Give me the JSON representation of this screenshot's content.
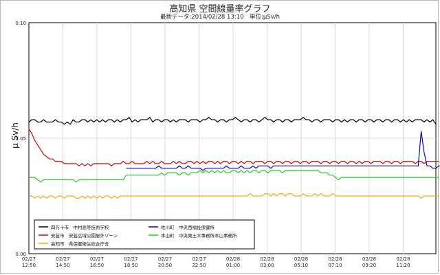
{
  "chart_data": {
    "type": "line",
    "title": "高知県 空間線量率グラフ",
    "subtitle": "最新データ:2014/02/28 13:10　単位:μSv/h",
    "ylabel": "μ Sv/h",
    "ylim": [
      0,
      0.1
    ],
    "yticks": [
      "0.00",
      "0.05",
      "0.10"
    ],
    "grid": true,
    "legend_position": "bottom-left",
    "xticks": [
      {
        "date": "02/27",
        "time": "12:50"
      },
      {
        "date": "02/27",
        "time": "14:50"
      },
      {
        "date": "02/27",
        "time": "16:50"
      },
      {
        "date": "02/27",
        "time": "18:50"
      },
      {
        "date": "02/27",
        "time": "20:50"
      },
      {
        "date": "02/27",
        "time": "22:50"
      },
      {
        "date": "02/28",
        "time": "01:00"
      },
      {
        "date": "02/28",
        "time": "03:00"
      },
      {
        "date": "02/28",
        "time": "05:10"
      },
      {
        "date": "02/28",
        "time": "07:10"
      },
      {
        "date": "02/28",
        "time": "09:20"
      },
      {
        "date": "02/28",
        "time": "11:20"
      }
    ],
    "series": [
      {
        "name": "四万十市　中村高等技術学校",
        "color": "#000000",
        "start": 0,
        "values": [
          0.057,
          0.058,
          0.058,
          0.057,
          0.057,
          0.058,
          0.057,
          0.057,
          0.057,
          0.058,
          0.057,
          0.057,
          0.056,
          0.057,
          0.056,
          0.058,
          0.057,
          0.057,
          0.058,
          0.058,
          0.057,
          0.058,
          0.057,
          0.058,
          0.057,
          0.058,
          0.057,
          0.058,
          0.058,
          0.057,
          0.058,
          0.057,
          0.058,
          0.058,
          0.059,
          0.057,
          0.058,
          0.057,
          0.058,
          0.058,
          0.058,
          0.059,
          0.057,
          0.058,
          0.058,
          0.057,
          0.058,
          0.058,
          0.057,
          0.058,
          0.057,
          0.058,
          0.058,
          0.058,
          0.057,
          0.058,
          0.058,
          0.058,
          0.057,
          0.058,
          0.058,
          0.059,
          0.058,
          0.058,
          0.057,
          0.058,
          0.058,
          0.057,
          0.058,
          0.058,
          0.059,
          0.058,
          0.057,
          0.058,
          0.058,
          0.057,
          0.058,
          0.058,
          0.057,
          0.058,
          0.059,
          0.058,
          0.058,
          0.057,
          0.058,
          0.058,
          0.057,
          0.058,
          0.058,
          0.057,
          0.058,
          0.058,
          0.058,
          0.059,
          0.058,
          0.058,
          0.057,
          0.058,
          0.058,
          0.057,
          0.058,
          0.058,
          0.058,
          0.057,
          0.058,
          0.058,
          0.057,
          0.058,
          0.057,
          0.058,
          0.058,
          0.057,
          0.058,
          0.058,
          0.057,
          0.058,
          0.058,
          0.057,
          0.058,
          0.058,
          0.057,
          0.058,
          0.058,
          0.057,
          0.058,
          0.058,
          0.057,
          0.058,
          0.057,
          0.058,
          0.057,
          0.058,
          0.058,
          0.058,
          0.057,
          0.058,
          0.057,
          0.058,
          0.056
        ]
      },
      {
        "name": "安芸市　安芸広域公園屋外ゾーン",
        "color": "#dd0000",
        "start": 0,
        "values": [
          0.054,
          0.052,
          0.049,
          0.047,
          0.045,
          0.043,
          0.042,
          0.041,
          0.041,
          0.04,
          0.04,
          0.04,
          0.039,
          0.039,
          0.039,
          0.039,
          0.039,
          0.038,
          0.039,
          0.038,
          0.039,
          0.038,
          0.039,
          0.039,
          0.039,
          0.039,
          0.039,
          0.039,
          0.038,
          0.039,
          0.039,
          0.039,
          0.04,
          0.039,
          0.039,
          0.04,
          0.039,
          0.039,
          0.039,
          0.039,
          0.04,
          0.039,
          0.04,
          0.039,
          0.039,
          0.04,
          0.039,
          0.039,
          0.039,
          0.04,
          0.039,
          0.04,
          0.039,
          0.039,
          0.04,
          0.04,
          0.039,
          0.04,
          0.039,
          0.04,
          0.039,
          0.04,
          0.04,
          0.039,
          0.04,
          0.039,
          0.04,
          0.04,
          0.039,
          0.04,
          0.04,
          0.039,
          0.04,
          0.039,
          0.04,
          0.04,
          0.039,
          0.04,
          0.04,
          0.04,
          0.039,
          0.04,
          0.04,
          0.039,
          0.04,
          0.04,
          0.039,
          0.04,
          0.04,
          0.039,
          0.04,
          0.04,
          0.039,
          0.04,
          0.04,
          0.039,
          0.04,
          0.04,
          0.04,
          0.039,
          0.04,
          0.04,
          0.039,
          0.04,
          0.04,
          0.039,
          0.04,
          0.04,
          0.039,
          0.04,
          0.04,
          0.039,
          0.04,
          0.039,
          0.04,
          0.04,
          0.039,
          0.04,
          0.04,
          0.04,
          0.039,
          0.04,
          0.04,
          0.039,
          0.04,
          0.04,
          0.039,
          0.04,
          0.04,
          0.04,
          0.04,
          0.039,
          0.04,
          0.04,
          0.039,
          0.04,
          0.04,
          0.04,
          0.04,
          0.04
        ]
      },
      {
        "name": "高知市　県保健衛生総合庁舎",
        "color": "#ffaa00",
        "start": 0,
        "values": [
          0.025,
          0.025,
          0.024,
          0.025,
          0.024,
          0.025,
          0.024,
          0.025,
          0.025,
          0.024,
          0.025,
          0.025,
          0.024,
          0.025,
          0.025,
          0.025,
          0.024,
          0.024,
          0.025,
          0.024,
          0.025,
          0.024,
          0.025,
          0.024,
          0.025,
          0.024,
          0.025,
          0.025,
          0.024,
          0.025,
          0.024,
          0.025,
          0.025,
          0.025,
          0.025,
          0.025,
          0.025,
          0.025,
          0.025,
          0.025,
          0.025,
          0.025,
          0.025,
          0.025,
          0.025,
          0.025,
          0.025,
          0.025,
          0.025,
          0.025,
          0.025,
          0.025,
          0.025,
          0.025,
          0.025,
          0.025,
          0.025,
          0.025,
          0.025,
          0.025,
          0.025,
          0.025,
          0.025,
          0.025,
          0.025,
          0.025,
          0.025,
          0.025,
          0.025,
          0.025,
          0.025,
          0.025,
          0.025,
          0.025,
          0.025,
          0.026,
          0.025,
          0.025,
          0.025,
          0.025,
          0.026,
          0.026,
          0.025,
          0.026,
          0.025,
          0.026,
          0.026,
          0.025,
          0.026,
          0.026,
          0.025,
          0.025,
          0.025,
          0.026,
          0.025,
          0.025,
          0.025,
          0.026,
          0.025,
          0.026,
          0.025,
          0.025,
          0.025,
          0.026,
          0.025,
          0.025,
          0.025,
          0.025,
          0.025,
          0.025,
          0.025,
          0.025,
          0.025,
          0.025,
          0.025,
          0.025,
          0.025,
          0.025,
          0.025,
          0.025,
          0.025,
          0.025,
          0.025,
          0.025,
          0.025,
          0.025,
          0.025,
          0.025,
          0.025,
          0.025,
          0.025,
          0.025,
          0.025,
          0.024,
          0.025,
          0.025,
          0.025,
          0.025,
          0.025,
          0.025
        ]
      },
      {
        "name": "佐川町　中央西福祉保健所",
        "color": "#0000cc",
        "start": 33,
        "values": [
          0.037,
          0.037,
          0.037,
          0.037,
          0.037,
          0.037,
          0.037,
          0.037,
          0.037,
          0.037,
          0.037,
          0.038,
          0.037,
          0.037,
          0.037,
          0.037,
          0.037,
          0.037,
          0.038,
          0.037,
          0.037,
          0.038,
          0.037,
          0.037,
          0.037,
          0.037,
          0.036,
          0.037,
          0.037,
          0.037,
          0.037,
          0.037,
          0.037,
          0.037,
          0.038,
          0.037,
          0.037,
          0.037,
          0.037,
          0.038,
          0.037,
          0.037,
          0.037,
          0.038,
          0.037,
          0.038,
          0.038,
          0.038,
          0.038,
          0.037,
          0.038,
          0.038,
          0.038,
          0.038,
          0.038,
          0.038,
          0.038,
          0.038,
          0.038,
          0.038,
          0.038,
          0.038,
          0.038,
          0.038,
          0.038,
          0.038,
          0.038,
          0.038,
          0.038,
          0.038,
          0.038,
          0.038,
          0.038,
          0.038,
          0.038,
          0.038,
          0.038,
          0.038,
          0.038,
          0.038,
          0.038,
          0.038,
          0.038,
          0.038,
          0.038,
          0.038,
          0.038,
          0.038,
          0.038,
          0.038,
          0.038,
          0.038,
          0.038,
          0.038,
          0.038,
          0.038,
          0.038,
          0.038,
          0.038,
          0.038,
          0.053,
          0.044,
          0.038,
          0.038,
          0.037,
          0.037,
          0.038,
          0.038,
          0.037,
          0.038,
          0.038,
          0.038,
          0.038,
          0.038,
          0.038,
          0.038,
          0.038
        ]
      },
      {
        "name": "本山町　中央東土木事務所本山事務所",
        "color": "#22cc22",
        "start": 0,
        "values": [
          0.033,
          0.033,
          0.033,
          0.032,
          0.031,
          0.032,
          0.032,
          0.032,
          0.032,
          0.032,
          0.032,
          0.032,
          0.032,
          0.032,
          0.032,
          0.032,
          0.031,
          0.032,
          0.032,
          0.032,
          0.032,
          0.032,
          0.032,
          0.032,
          0.032,
          0.032,
          0.032,
          0.032,
          0.032,
          0.032,
          0.032,
          0.032,
          0.032,
          0.034,
          0.034,
          0.034,
          0.034,
          0.034,
          0.034,
          0.034,
          0.034,
          0.034,
          0.034,
          0.034,
          0.034,
          0.035,
          0.034,
          0.035,
          0.035,
          0.035,
          0.035,
          0.034,
          0.035,
          0.035,
          0.034,
          0.035,
          0.035,
          0.035,
          0.036,
          0.035,
          0.036,
          0.035,
          0.036,
          0.035,
          0.036,
          0.035,
          0.036,
          0.035,
          0.035,
          0.036,
          0.036,
          0.035,
          0.036,
          0.035,
          0.036,
          0.035,
          0.036,
          0.036,
          0.035,
          0.036,
          0.036,
          0.035,
          0.036,
          0.036,
          0.036,
          0.036,
          0.035,
          0.036,
          0.036,
          0.036,
          0.036,
          0.036,
          0.036,
          0.036,
          0.036,
          0.036,
          0.036,
          0.036,
          0.036,
          0.035,
          0.035,
          0.035,
          0.034,
          0.034,
          0.033,
          0.032,
          0.033,
          0.033,
          0.033,
          0.033,
          0.033,
          0.033,
          0.033,
          0.033,
          0.033,
          0.033,
          0.033,
          0.033,
          0.033,
          0.033,
          0.033,
          0.033,
          0.033,
          0.033,
          0.033,
          0.033,
          0.033,
          0.033,
          0.033,
          0.033,
          0.033,
          0.033,
          0.033,
          0.033,
          0.033,
          0.033,
          0.033,
          0.033,
          0.033,
          0.033
        ]
      }
    ],
    "legend_order": [
      0,
      3,
      1,
      4,
      2
    ]
  }
}
